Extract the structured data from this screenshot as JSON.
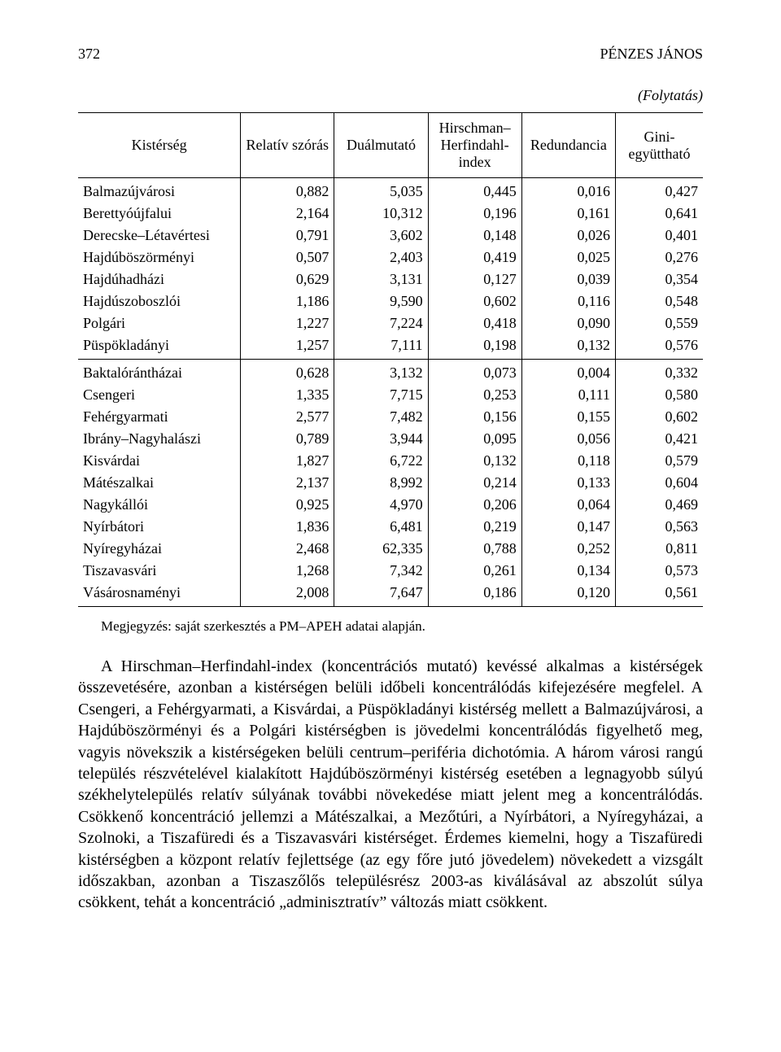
{
  "runhead": {
    "page_number": "372",
    "author": "PÉNZES JÁNOS"
  },
  "continuation": "(Folytatás)",
  "table": {
    "type": "table",
    "columns": [
      {
        "label": "Kistérség",
        "align": "left"
      },
      {
        "label": "Relatív szórás",
        "align": "right"
      },
      {
        "label": "Duálmutató",
        "align": "right"
      },
      {
        "label": "Hirschman–\nHerfindahl-\nindex",
        "align": "right"
      },
      {
        "label": "Redundancia",
        "align": "right"
      },
      {
        "label": "Gini-együttható",
        "align": "right"
      }
    ],
    "col_widths_pct": [
      26,
      15,
      15,
      15,
      15,
      14
    ],
    "font_size_pt": 14,
    "border_color": "#000000",
    "background_color": "#ffffff",
    "sections": [
      {
        "rows": [
          [
            "Balmazújvárosi",
            "0,882",
            "5,035",
            "0,445",
            "0,016",
            "0,427"
          ],
          [
            "Berettyóújfalui",
            "2,164",
            "10,312",
            "0,196",
            "0,161",
            "0,641"
          ],
          [
            "Derecske–Létavértesi",
            "0,791",
            "3,602",
            "0,148",
            "0,026",
            "0,401"
          ],
          [
            "Hajdúböszörményi",
            "0,507",
            "2,403",
            "0,419",
            "0,025",
            "0,276"
          ],
          [
            "Hajdúhadházi",
            "0,629",
            "3,131",
            "0,127",
            "0,039",
            "0,354"
          ],
          [
            "Hajdúszoboszlói",
            "1,186",
            "9,590",
            "0,602",
            "0,116",
            "0,548"
          ],
          [
            "Polgári",
            "1,227",
            "7,224",
            "0,418",
            "0,090",
            "0,559"
          ],
          [
            "Püspökladányi",
            "1,257",
            "7,111",
            "0,198",
            "0,132",
            "0,576"
          ]
        ]
      },
      {
        "rows": [
          [
            "Baktalórántházai",
            "0,628",
            "3,132",
            "0,073",
            "0,004",
            "0,332"
          ],
          [
            "Csengeri",
            "1,335",
            "7,715",
            "0,253",
            "0,111",
            "0,580"
          ],
          [
            "Fehérgyarmati",
            "2,577",
            "7,482",
            "0,156",
            "0,155",
            "0,602"
          ],
          [
            "Ibrány–Nagyhalászi",
            "0,789",
            "3,944",
            "0,095",
            "0,056",
            "0,421"
          ],
          [
            "Kisvárdai",
            "1,827",
            "6,722",
            "0,132",
            "0,118",
            "0,579"
          ],
          [
            "Mátészalkai",
            "2,137",
            "8,992",
            "0,214",
            "0,133",
            "0,604"
          ],
          [
            "Nagykállói",
            "0,925",
            "4,970",
            "0,206",
            "0,064",
            "0,469"
          ],
          [
            "Nyírbátori",
            "1,836",
            "6,481",
            "0,219",
            "0,147",
            "0,563"
          ],
          [
            "Nyíregyházai",
            "2,468",
            "62,335",
            "0,788",
            "0,252",
            "0,811"
          ],
          [
            "Tiszavasvári",
            "1,268",
            "7,342",
            "0,261",
            "0,134",
            "0,573"
          ],
          [
            "Vásárosnaményi",
            "2,008",
            "7,647",
            "0,186",
            "0,120",
            "0,561"
          ]
        ]
      }
    ]
  },
  "note": "Megjegyzés: saját szerkesztés a PM–APEH adatai alapján.",
  "body": "A Hirschman–Herfindahl-index (koncentrációs mutató) kevéssé alkalmas a kistérségek összevetésére, azonban a kistérségen belüli időbeli koncentrálódás kifejezésére megfelel. A Csengeri, a Fehérgyarmati, a Kisvárdai, a Püspökladányi kistérség mellett a Balmazújvárosi, a Hajdúböszörményi és a Polgári kistérségben is jövedelmi koncentrálódás figyelhető meg, vagyis növekszik a kistérségeken belüli centrum–periféria dichotómia. A három városi rangú település részvételével kialakított Hajdúböszörményi kistérség esetében a legnagyobb súlyú székhelytelepülés relatív súlyának további növekedése miatt jelent meg a koncentrálódás. Csökkenő koncentráció jellemzi a Mátészalkai, a Mezőtúri, a Nyírbátori, a Nyíregyházai, a Szolnoki, a Tiszafüredi és a Tiszavasvári kistérséget. Érdemes kiemelni, hogy a Tiszafüredi kistérségben a központ relatív fejlettsége (az egy főre jutó jövedelem) növekedett a vizsgált időszakban, azonban a Tiszaszőlős településrész 2003-as kiválásával az abszolút súlya csökkent, tehát a koncentráció „adminisztratív” változás miatt csökkent."
}
